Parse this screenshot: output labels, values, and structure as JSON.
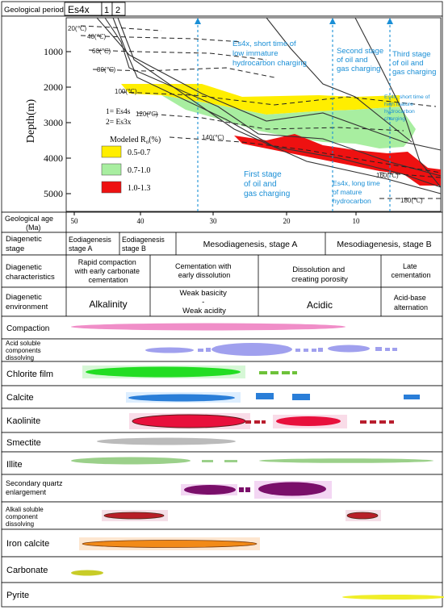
{
  "header": {
    "period_label": "Geological period",
    "cells": [
      "Es4x",
      "1",
      "2"
    ]
  },
  "depth_axis": {
    "label": "Depth(m)",
    "ticks": [
      "1000",
      "2000",
      "3000",
      "4000",
      "5000"
    ]
  },
  "temps": [
    "20(℃)",
    "40(℃)",
    "60(℃)",
    "80(℃)",
    "100(℃)",
    "120(℃)",
    "140(℃)",
    "160(℃)",
    "180(℃)"
  ],
  "annotations": {
    "low_immature": "Es4x, short time of low immature hydrocarbon charging",
    "second_stage": "Second stage of oil and gas charging",
    "third_stage": "Third stage of oil and gas charging",
    "high_mature": "Es4x, short time of high mature hydrocarbon charging",
    "first_stage": "First stage of oil and gas charging",
    "long_mature": "Es4x, long time of mature hydrocarbon"
  },
  "formation_key": [
    "1= Es4s",
    "2= Es3x"
  ],
  "legend": {
    "title": "Modeled Ro(%)",
    "items": [
      {
        "label": "0.5-0.7",
        "color": "#ffee00"
      },
      {
        "label": "0.7-1.0",
        "color": "#a8eea0"
      },
      {
        "label": "1.0-1.3",
        "color": "#ee1111"
      }
    ]
  },
  "age_axis": {
    "label": "Geological age (Ma)",
    "ticks": [
      "50",
      "40",
      "30",
      "20",
      "10"
    ]
  },
  "stage_row": {
    "label": "Diagenetic stage",
    "cells": [
      "Eodiagenesis stage A",
      "Eodiagenesis stage B",
      "Mesodiagenesis, stage A",
      "Mesodiagenesis, stage B"
    ]
  },
  "char_row": {
    "label": "Diagenetic characteristics",
    "cells": [
      "Rapid compaction with early carbonate cementation",
      "Cementation with early dissolution",
      "Dissolution and creating porosity",
      "Late cementation"
    ]
  },
  "env_row": {
    "label": "Diagenetic environment",
    "cells": [
      "Alkalinity",
      "Weak basicity - Weak acidity",
      "Acidic",
      "Acid-base alternation"
    ]
  },
  "processes": [
    {
      "label": "Compaction",
      "color": "#f08ec8"
    },
    {
      "label": "Acid soluble components dissolving",
      "color": "#a0a0ee"
    },
    {
      "label": "Chlorite film",
      "color": "#22dd22"
    },
    {
      "label": "Calcite",
      "color": "#2a7ed8"
    },
    {
      "label": "Kaolinite",
      "color": "#e8103c"
    },
    {
      "label": "Smectite",
      "color": "#bbbbbb"
    },
    {
      "label": "Illite",
      "color": "#9bd08a"
    },
    {
      "label": "Secondary quartz enlargement",
      "color": "#7a0f6a"
    },
    {
      "label": "Alkali soluble component dissolving",
      "color": "#b81e28"
    },
    {
      "label": "Iron calcite",
      "color": "#f28a18"
    },
    {
      "label": "Carbonate",
      "color": "#c8cc28"
    },
    {
      "label": "Pyrite",
      "color": "#f0ee28"
    }
  ]
}
